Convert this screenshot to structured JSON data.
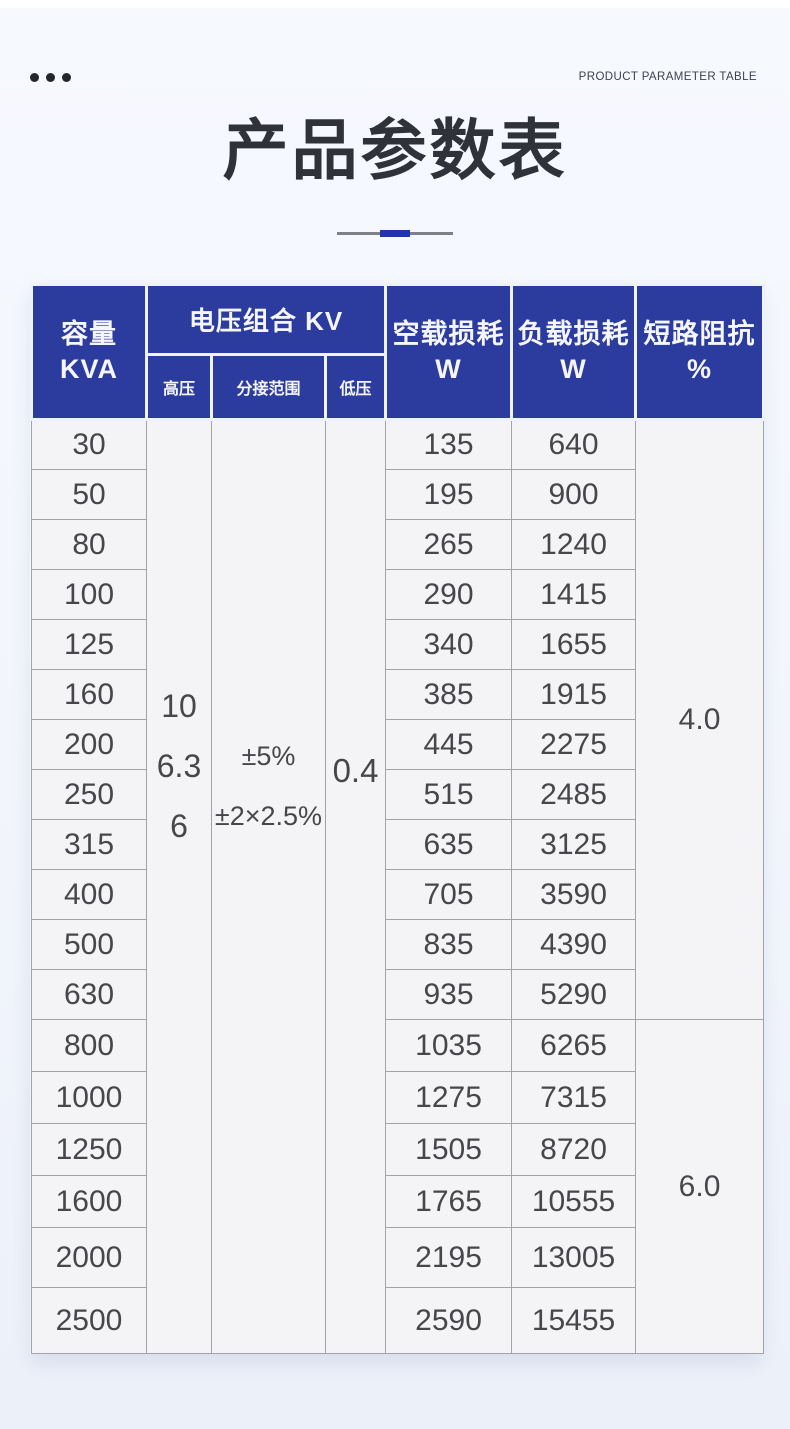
{
  "page": {
    "eyebrow": "PRODUCT PARAMETER TABLE",
    "title": "产品参数表"
  },
  "colors": {
    "header_bg": "#2c3b9e",
    "accent_blue": "#2133ac",
    "page_bg": "#f3f6fc",
    "cell_bg": "#f4f4f6",
    "cell_border": "#a2a2a7",
    "body_text": "#47474b"
  },
  "table": {
    "header": {
      "capacity": {
        "line1": "容量",
        "line2": "KVA"
      },
      "voltage_combo": "电压组合 KV",
      "hv": "高压",
      "tap_range": "分接范围",
      "lv": "低压",
      "no_load": {
        "line1": "空载损耗",
        "line2": "W"
      },
      "load": {
        "line1": "负载损耗",
        "line2": "W"
      },
      "impedance": {
        "line1": "短路阻抗",
        "line2": "%"
      }
    },
    "merged": {
      "hv_values": [
        "10",
        "6.3",
        "6"
      ],
      "tap_values": [
        "±5%",
        "±2×2.5%"
      ],
      "lv_value": "0.4"
    },
    "impedance_groups": [
      {
        "value": "4.0",
        "row_start": 0,
        "row_span": 12
      },
      {
        "value": "6.0",
        "row_start": 12,
        "row_span": 6
      }
    ],
    "rows": [
      {
        "kva": "30",
        "no_load": "135",
        "load": "640"
      },
      {
        "kva": "50",
        "no_load": "195",
        "load": "900"
      },
      {
        "kva": "80",
        "no_load": "265",
        "load": "1240"
      },
      {
        "kva": "100",
        "no_load": "290",
        "load": "1415"
      },
      {
        "kva": "125",
        "no_load": "340",
        "load": "1655"
      },
      {
        "kva": "160",
        "no_load": "385",
        "load": "1915"
      },
      {
        "kva": "200",
        "no_load": "445",
        "load": "2275"
      },
      {
        "kva": "250",
        "no_load": "515",
        "load": "2485"
      },
      {
        "kva": "315",
        "no_load": "635",
        "load": "3125"
      },
      {
        "kva": "400",
        "no_load": "705",
        "load": "3590"
      },
      {
        "kva": "500",
        "no_load": "835",
        "load": "4390"
      },
      {
        "kva": "630",
        "no_load": "935",
        "load": "5290"
      },
      {
        "kva": "800",
        "no_load": "1035",
        "load": "6265"
      },
      {
        "kva": "1000",
        "no_load": "1275",
        "load": "7315"
      },
      {
        "kva": "1250",
        "no_load": "1505",
        "load": "8720"
      },
      {
        "kva": "1600",
        "no_load": "1765",
        "load": "10555"
      },
      {
        "kva": "2000",
        "no_load": "2195",
        "load": "13005"
      },
      {
        "kva": "2500",
        "no_load": "2590",
        "load": "15455"
      }
    ]
  }
}
